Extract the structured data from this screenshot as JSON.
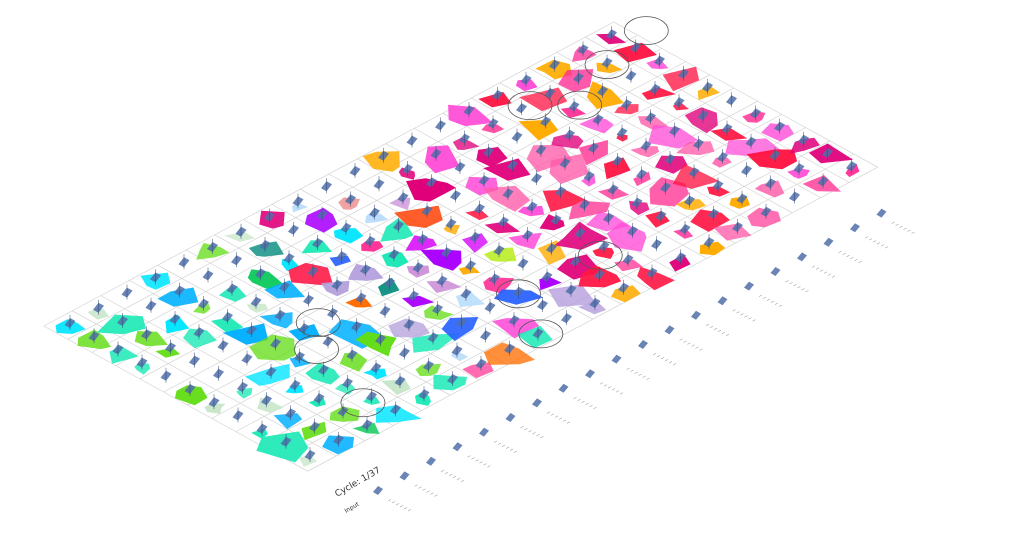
{
  "cycle_label": "Cycle: 1/37",
  "input_label": "Input",
  "colors": {
    "glyph": "#4f6fa8",
    "grid": "#cfcfcf",
    "highlight_ring": "#555555",
    "palette": [
      "#ff1744",
      "#e0007a",
      "#ff2d95",
      "#ff5aa8",
      "#ff4fd8",
      "#d500f9",
      "#aa00ff",
      "#7c4dff",
      "#2962ff",
      "#00b0ff",
      "#00e5ff",
      "#1de9b6",
      "#00c853",
      "#64dd17",
      "#aeea00",
      "#ffea00",
      "#ffab00",
      "#ff6d00",
      "#ff3d00",
      "#c0ca33",
      "#ef9a9a",
      "#ce93d8",
      "#b39ddb",
      "#bbdefb",
      "#c8e6c9",
      "#00897b"
    ]
  }
}
